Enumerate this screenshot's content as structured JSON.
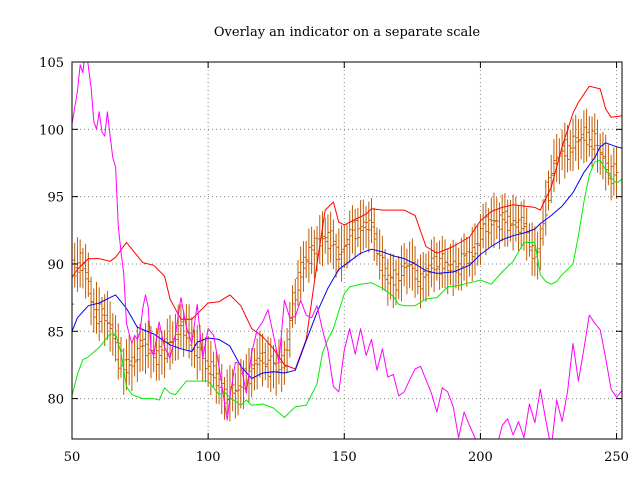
{
  "chart_data": {
    "type": "line",
    "title": "Overlay an indicator on a separate scale",
    "xlabel": "",
    "ylabel": "",
    "xlim": [
      50,
      252
    ],
    "ylim": [
      77,
      105
    ],
    "x_ticks": [
      50,
      100,
      150,
      200,
      250
    ],
    "y_ticks": [
      80,
      85,
      90,
      95,
      100,
      105
    ],
    "grid": true,
    "legend": "none",
    "colors": {
      "price_bars": "#c05a00",
      "upper_band": "#ff0000",
      "middle_average": "#0000ff",
      "lower_band": "#00ee00",
      "indicator": "#ff00ff",
      "grid": "#888888"
    },
    "series": [
      {
        "key": "upper_band",
        "x": [
          50,
          52,
          56,
          60,
          64,
          66,
          70,
          72,
          76,
          80,
          84,
          86,
          90,
          94,
          100,
          104,
          108,
          112,
          116,
          120,
          124,
          128,
          132,
          136,
          140,
          143,
          146,
          148,
          150,
          154,
          158,
          160,
          164,
          168,
          172,
          176,
          180,
          184,
          190,
          196,
          200,
          204,
          208,
          212,
          216,
          220,
          222,
          226,
          230,
          234,
          236,
          240,
          244,
          246,
          248,
          252
        ],
        "y": [
          89.0,
          89.6,
          90.4,
          90.4,
          90.2,
          90.5,
          91.6,
          91.1,
          90.1,
          89.9,
          89.1,
          87.4,
          85.9,
          85.9,
          87.1,
          87.2,
          87.7,
          86.9,
          85.2,
          84.6,
          83.7,
          82.5,
          82.2,
          84.4,
          90.0,
          94.0,
          94.6,
          93.1,
          92.9,
          93.3,
          93.7,
          94.1,
          94.0,
          94.0,
          94.0,
          93.6,
          91.3,
          90.8,
          91.3,
          92.0,
          93.2,
          93.9,
          94.2,
          94.4,
          94.3,
          94.2,
          94.0,
          95.7,
          98.7,
          101.2,
          102.0,
          103.2,
          103.0,
          101.5,
          100.9,
          101.0
        ]
      },
      {
        "key": "middle_average",
        "x": [
          50,
          52,
          56,
          60,
          64,
          66,
          70,
          74,
          80,
          86,
          90,
          94,
          96,
          100,
          104,
          108,
          112,
          116,
          120,
          124,
          128,
          132,
          136,
          140,
          144,
          148,
          152,
          156,
          160,
          164,
          168,
          172,
          176,
          180,
          184,
          190,
          196,
          200,
          204,
          208,
          212,
          216,
          220,
          222,
          226,
          230,
          234,
          238,
          242,
          244,
          246,
          250,
          252
        ],
        "y": [
          85.0,
          86.0,
          86.9,
          87.1,
          87.5,
          87.7,
          86.7,
          85.3,
          84.8,
          84.0,
          83.7,
          83.5,
          84.2,
          84.5,
          84.4,
          83.9,
          82.4,
          81.5,
          81.9,
          82.0,
          81.9,
          82.1,
          84.3,
          86.4,
          88.2,
          89.6,
          90.2,
          90.8,
          91.1,
          90.9,
          90.6,
          90.4,
          90.0,
          89.5,
          89.3,
          89.4,
          89.9,
          90.7,
          91.3,
          91.8,
          92.1,
          92.3,
          92.6,
          93.0,
          93.6,
          94.3,
          95.3,
          96.8,
          97.9,
          98.7,
          99.0,
          98.7,
          98.6
        ]
      },
      {
        "key": "lower_band",
        "x": [
          50,
          52,
          54,
          56,
          60,
          64,
          66,
          68,
          70,
          72,
          76,
          80,
          82,
          84,
          86,
          88,
          92,
          96,
          100,
          104,
          106,
          108,
          112,
          114,
          116,
          120,
          124,
          128,
          130,
          132,
          136,
          138,
          140,
          142,
          144,
          146,
          148,
          150,
          152,
          154,
          156,
          160,
          164,
          168,
          170,
          172,
          176,
          180,
          184,
          188,
          192,
          196,
          200,
          204,
          208,
          212,
          216,
          220,
          222,
          224,
          226,
          228,
          230,
          234,
          236,
          238,
          240,
          242,
          244,
          246,
          248,
          250,
          252
        ],
        "y": [
          80.2,
          81.8,
          82.9,
          83.1,
          83.8,
          84.8,
          84.8,
          83.4,
          80.9,
          80.3,
          80.0,
          80.0,
          79.9,
          80.8,
          80.4,
          80.3,
          81.3,
          81.3,
          81.3,
          80.3,
          80.5,
          80.1,
          79.5,
          79.9,
          79.5,
          79.6,
          79.3,
          78.6,
          79.0,
          79.4,
          79.5,
          80.3,
          81.1,
          83.4,
          84.4,
          85.2,
          86.5,
          87.8,
          88.3,
          88.4,
          88.5,
          88.6,
          88.2,
          87.6,
          87.0,
          86.9,
          86.9,
          87.4,
          87.5,
          88.3,
          88.4,
          88.6,
          88.8,
          88.5,
          89.4,
          90.2,
          91.6,
          91.6,
          89.2,
          88.7,
          88.5,
          88.7,
          89.2,
          90.0,
          92.1,
          94.6,
          96.6,
          97.6,
          97.7,
          97.0,
          96.4,
          96.0,
          96.3
        ]
      },
      {
        "key": "indicator",
        "x": [
          50,
          52,
          53,
          54,
          55,
          56,
          57,
          58,
          59,
          60,
          61,
          62,
          63,
          64,
          65,
          66,
          67,
          68,
          69,
          70,
          71,
          72,
          73,
          74,
          75,
          76,
          77,
          78,
          79,
          80,
          82,
          84,
          86,
          88,
          90,
          92,
          94,
          96,
          98,
          100,
          102,
          104,
          106,
          107,
          108,
          110,
          112,
          114,
          116,
          118,
          120,
          122,
          124,
          126,
          128,
          130,
          132,
          134,
          136,
          138,
          140,
          142,
          144,
          146,
          148,
          150,
          152,
          154,
          156,
          158,
          160,
          162,
          164,
          166,
          168,
          170,
          172,
          174,
          176,
          178,
          180,
          182,
          184,
          186,
          188,
          190,
          192,
          194,
          196,
          198,
          200,
          201,
          202,
          204,
          206,
          208,
          210,
          212,
          214,
          216,
          218,
          220,
          222,
          224,
          226,
          228,
          230,
          232,
          234,
          236,
          238,
          240,
          242,
          244,
          246,
          248,
          250,
          252
        ],
        "y": [
          100.4,
          102.8,
          104.8,
          104.2,
          106.2,
          104.7,
          103.1,
          100.6,
          100.0,
          101.3,
          99.8,
          99.5,
          101.3,
          99.5,
          97.9,
          97.2,
          92.8,
          90.9,
          89.3,
          85.6,
          84.8,
          84.1,
          84.7,
          84.4,
          85.0,
          86.7,
          87.7,
          86.8,
          83.6,
          83.2,
          85.7,
          83.8,
          83.0,
          84.8,
          87.5,
          85.3,
          84.1,
          87.0,
          83.0,
          85.2,
          84.7,
          82.4,
          79.7,
          78.4,
          80.1,
          82.7,
          82.6,
          80.4,
          83.4,
          85.1,
          85.7,
          86.6,
          84.7,
          82.7,
          87.3,
          86.0,
          86.1,
          87.3,
          86.2,
          86.0,
          86.9,
          85.1,
          83.6,
          80.9,
          80.5,
          83.6,
          85.2,
          83.3,
          85.2,
          83.2,
          84.4,
          82.1,
          83.7,
          81.6,
          81.8,
          80.2,
          80.5,
          81.4,
          82.2,
          82.4,
          81.4,
          80.4,
          79.0,
          80.8,
          80.5,
          79.4,
          77.1,
          79.0,
          78.0,
          77.1,
          75.7,
          74.0,
          75.1,
          73.9,
          76.4,
          78.0,
          78.5,
          77.3,
          78.3,
          77.1,
          79.6,
          78.2,
          80.7,
          78.4,
          76.3,
          79.9,
          78.3,
          80.5,
          84.1,
          81.3,
          83.7,
          86.2,
          85.6,
          85.1,
          83.0,
          80.7,
          80.1,
          80.6
        ]
      }
    ],
    "price_bars": {
      "key": "price_bars",
      "x": [
        50,
        51,
        52,
        53,
        54,
        55,
        56,
        57,
        58,
        59,
        60,
        61,
        62,
        63,
        64,
        65,
        66,
        67,
        68,
        69,
        70,
        71,
        72,
        73,
        74,
        75,
        76,
        77,
        78,
        79,
        80,
        81,
        82,
        83,
        84,
        85,
        86,
        87,
        88,
        89,
        90,
        91,
        92,
        93,
        94,
        95,
        96,
        97,
        98,
        99,
        100,
        101,
        102,
        103,
        104,
        105,
        106,
        107,
        108,
        109,
        110,
        111,
        112,
        113,
        114,
        115,
        116,
        117,
        118,
        119,
        120,
        121,
        122,
        123,
        124,
        125,
        126,
        127,
        128,
        129,
        130,
        131,
        132,
        133,
        134,
        135,
        136,
        137,
        138,
        139,
        140,
        141,
        142,
        143,
        144,
        145,
        146,
        147,
        148,
        149,
        150,
        151,
        152,
        153,
        154,
        155,
        156,
        157,
        158,
        159,
        160,
        161,
        162,
        163,
        164,
        165,
        166,
        167,
        168,
        169,
        170,
        171,
        172,
        173,
        174,
        175,
        176,
        177,
        178,
        179,
        180,
        181,
        182,
        183,
        184,
        185,
        186,
        187,
        188,
        189,
        190,
        191,
        192,
        193,
        194,
        195,
        196,
        197,
        198,
        199,
        200,
        201,
        202,
        203,
        204,
        205,
        206,
        207,
        208,
        209,
        210,
        211,
        212,
        213,
        214,
        215,
        216,
        217,
        218,
        219,
        220,
        221,
        222,
        223,
        224,
        225,
        226,
        227,
        228,
        229,
        230,
        231,
        232,
        233,
        234,
        235,
        236,
        237,
        238,
        239,
        240,
        241,
        242,
        243,
        244,
        245,
        246,
        247,
        248,
        249,
        250,
        251,
        252
      ],
      "center": [
        87.5,
        89.7,
        89.9,
        90.1,
        89.8,
        89.5,
        88.8,
        87.5,
        86.6,
        86.6,
        86.3,
        86.2,
        86.0,
        85.9,
        85.4,
        85.1,
        84.3,
        83.5,
        82.9,
        82.3,
        82.4,
        82.7,
        82.6,
        82.9,
        83.3,
        83.6,
        83.9,
        83.8,
        83.7,
        83.6,
        83.4,
        83.3,
        83.2,
        83.4,
        83.6,
        83.9,
        84.2,
        84.3,
        84.6,
        84.9,
        85.1,
        85.2,
        85.2,
        84.9,
        84.3,
        83.8,
        83.5,
        83.4,
        83.3,
        83.0,
        82.6,
        82.3,
        82.1,
        81.7,
        81.2,
        80.7,
        80.4,
        80.3,
        80.4,
        80.5,
        80.5,
        80.6,
        80.9,
        81.3,
        81.7,
        81.7,
        81.8,
        82.4,
        82.7,
        82.9,
        83.0,
        82.9,
        82.7,
        82.4,
        82.3,
        82.3,
        82.4,
        82.5,
        82.8,
        83.6,
        85.1,
        86.5,
        87.6,
        88.5,
        89.2,
        89.9,
        90.4,
        90.7,
        90.7,
        90.9,
        91.3,
        91.6,
        91.9,
        92.0,
        92.0,
        91.8,
        91.4,
        91.0,
        90.8,
        90.8,
        91.2,
        91.6,
        92.0,
        92.3,
        92.5,
        92.6,
        92.7,
        92.8,
        92.9,
        92.9,
        92.8,
        92.3,
        91.5,
        90.7,
        90.0,
        89.4,
        89.0,
        88.8,
        88.7,
        88.8,
        89.0,
        89.3,
        89.6,
        89.8,
        89.9,
        89.8,
        89.5,
        89.1,
        88.8,
        88.8,
        89.1,
        89.5,
        89.8,
        90.0,
        90.1,
        90.1,
        90.0,
        89.9,
        89.8,
        89.7,
        89.7,
        89.8,
        89.9,
        90.0,
        90.2,
        90.4,
        90.5,
        90.7,
        91.0,
        91.5,
        92.0,
        92.4,
        92.7,
        92.9,
        93.1,
        93.2,
        93.2,
        93.2,
        93.2,
        93.2,
        93.2,
        93.2,
        93.1,
        93.0,
        93.0,
        92.9,
        92.7,
        92.3,
        91.8,
        91.2,
        90.7,
        90.7,
        91.5,
        92.8,
        94.2,
        95.4,
        96.5,
        97.2,
        97.7,
        98.0,
        98.2,
        98.4,
        98.5,
        98.7,
        98.9,
        99.0,
        99.1,
        99.3,
        99.4,
        99.5,
        99.5,
        99.3,
        99.1,
        98.8,
        98.4,
        98.0,
        97.5,
        97.1,
        96.8,
        96.7,
        96.7
      ],
      "amplitude": 1.2
    }
  }
}
